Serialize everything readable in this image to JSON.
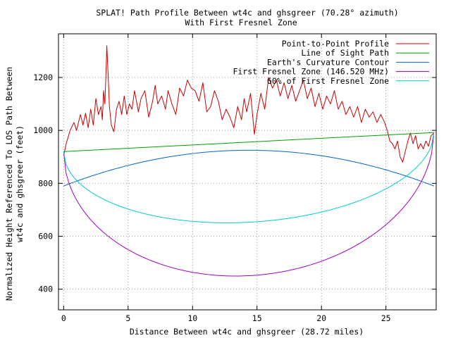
{
  "chart_data": {
    "type": "line",
    "title": "SPLAT! Path Profile Between wt4c and ghsgreer (70.28° azimuth)",
    "subtitle": "With First Fresnel Zone",
    "xlabel": "Distance Between wt4c and ghsgreer (28.72 miles)",
    "ylabel_line1": "Normalized Height Referenced To LOS Path Between",
    "ylabel_line2": "wt4c and ghsgreer (feet)",
    "xlim": [
      -0.4,
      28.9
    ],
    "ylim": [
      322,
      1365
    ],
    "x_ticks": [
      0,
      5,
      10,
      15,
      20,
      25
    ],
    "y_ticks": [
      400,
      600,
      800,
      1000,
      1200
    ],
    "grid": true,
    "legend_position": "top-right",
    "series": [
      {
        "name": "Point-to-Point Profile",
        "color": "#cc0000",
        "x": [
          0,
          0.2,
          0.5,
          0.8,
          1.0,
          1.3,
          1.5,
          1.7,
          1.9,
          2.1,
          2.3,
          2.5,
          2.7,
          2.9,
          3.0,
          3.1,
          3.2,
          3.3,
          3.35,
          3.45,
          3.55,
          3.7,
          3.9,
          4.1,
          4.3,
          4.5,
          4.7,
          4.9,
          5.1,
          5.3,
          5.5,
          5.8,
          6.0,
          6.3,
          6.6,
          6.9,
          7.1,
          7.3,
          7.6,
          7.9,
          8.1,
          8.4,
          8.7,
          9.0,
          9.3,
          9.6,
          9.9,
          10.2,
          10.5,
          10.8,
          11.1,
          11.4,
          11.7,
          12.0,
          12.3,
          12.6,
          12.9,
          13.2,
          13.5,
          13.8,
          14.0,
          14.2,
          14.5,
          14.8,
          15.0,
          15.3,
          15.6,
          15.9,
          16.2,
          16.5,
          16.8,
          17.1,
          17.4,
          17.7,
          18.0,
          18.3,
          18.6,
          18.9,
          19.2,
          19.5,
          19.8,
          20.1,
          20.4,
          20.7,
          21.0,
          21.3,
          21.6,
          21.9,
          22.2,
          22.5,
          22.8,
          23.1,
          23.4,
          23.7,
          24.0,
          24.3,
          24.6,
          24.9,
          25.1,
          25.3,
          25.5,
          25.7,
          25.9,
          26.1,
          26.3,
          26.5,
          26.7,
          26.9,
          27.1,
          27.3,
          27.5,
          27.7,
          27.9,
          28.1,
          28.3,
          28.5,
          28.72
        ],
        "y": [
          905,
          950,
          1000,
          1030,
          1000,
          1060,
          1020,
          1065,
          1010,
          1080,
          1020,
          1120,
          1060,
          1090,
          1040,
          1150,
          1100,
          1240,
          1320,
          1210,
          1090,
          1020,
          995,
          1080,
          1110,
          1060,
          1130,
          1060,
          1100,
          1080,
          1150,
          1070,
          1120,
          1150,
          1050,
          1110,
          1170,
          1100,
          1130,
          1080,
          1150,
          1100,
          1060,
          1160,
          1130,
          1190,
          1160,
          1150,
          1110,
          1180,
          1070,
          1090,
          1150,
          1110,
          1040,
          1080,
          1050,
          1010,
          1090,
          1040,
          1120,
          1070,
          1140,
          985,
          1060,
          1140,
          1080,
          1200,
          1160,
          1190,
          1130,
          1180,
          1120,
          1170,
          1110,
          1150,
          1190,
          1120,
          1160,
          1090,
          1140,
          1080,
          1130,
          1100,
          1150,
          1080,
          1110,
          1060,
          1090,
          1050,
          1090,
          1030,
          1080,
          1050,
          1070,
          1030,
          1060,
          1030,
          1000,
          960,
          950,
          930,
          960,
          900,
          880,
          920,
          960,
          990,
          950,
          980,
          930,
          950,
          930,
          960,
          940,
          980,
          990
        ]
      },
      {
        "name": "Line of Sight Path",
        "color": "#00a000",
        "x": [
          0,
          28.72
        ],
        "y": [
          920,
          992
        ]
      },
      {
        "name": "Earth's Curvature Contour",
        "color": "#0066cc",
        "shape": "parabola",
        "x_start": 0,
        "y_start": 790,
        "x_end": 28.72,
        "y_end": 790,
        "y_mid": 925
      },
      {
        "name": "First Fresnel Zone (146.520 MHz)",
        "color": "#a000c0",
        "shape": "ellipse-lower",
        "x_start": 0,
        "y_start": 920,
        "x_end": 28.72,
        "y_end": 992,
        "depth": 505
      },
      {
        "name": "60% of First Fresnel Zone",
        "color": "#00cccc",
        "shape": "ellipse-lower",
        "x_start": 0,
        "y_start": 920,
        "x_end": 28.72,
        "y_end": 992,
        "depth": 303
      }
    ]
  }
}
